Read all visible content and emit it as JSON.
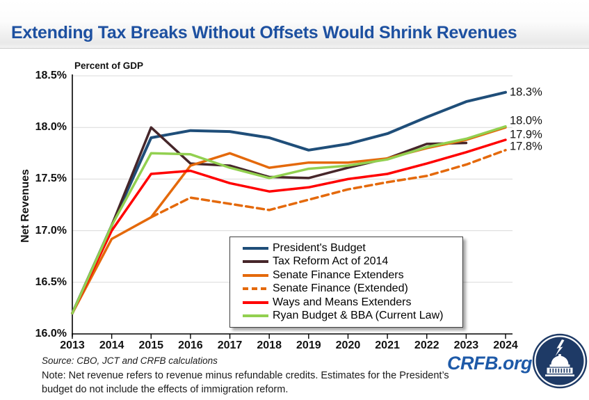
{
  "chart": {
    "units_label": "Percent of GDP"
  },
  "chart_data": {
    "type": "line",
    "title": "Extending Tax Breaks Without Offsets Would Shrink Revenues",
    "xlabel": "",
    "ylabel": "Net Revenues",
    "units": "Percent of GDP",
    "x": [
      2013,
      2014,
      2015,
      2016,
      2017,
      2018,
      2019,
      2020,
      2021,
      2022,
      2023,
      2024
    ],
    "ylim": [
      16.0,
      18.5
    ],
    "ytick_step": 0.5,
    "ytick_suffix": "%",
    "grid": true,
    "legend_position": "inside-lower-center",
    "series": [
      {
        "name": "President's Budget",
        "color": "#1F4E79",
        "dash": false,
        "width": 4,
        "values": [
          16.2,
          17.05,
          17.9,
          17.97,
          17.96,
          17.9,
          17.78,
          17.84,
          17.94,
          18.1,
          18.25,
          18.34
        ],
        "end_label": "18.3%",
        "end_label_dy": 0
      },
      {
        "name": "Tax Reform Act of 2014",
        "color": "#46262A",
        "dash": false,
        "width": 3.5,
        "values": [
          16.2,
          17.05,
          18.0,
          17.65,
          17.63,
          17.52,
          17.51,
          17.61,
          17.7,
          17.84,
          17.85,
          null
        ],
        "end_label": "",
        "end_label_dy": 0
      },
      {
        "name": "Senate Finance Extenders",
        "color": "#E4690B",
        "dash": false,
        "width": 3.5,
        "values": [
          16.2,
          16.92,
          17.13,
          17.63,
          17.75,
          17.61,
          17.66,
          17.66,
          17.7,
          17.8,
          17.88,
          18.0
        ],
        "end_label": "",
        "end_label_dy": 0
      },
      {
        "name": "Senate Finance (Extended)",
        "color": "#E4690B",
        "dash": true,
        "width": 3.5,
        "values": [
          null,
          null,
          17.13,
          17.32,
          17.26,
          17.2,
          17.3,
          17.4,
          17.47,
          17.53,
          17.64,
          17.78
        ],
        "end_label": "17.8%",
        "end_label_dy": -5
      },
      {
        "name": "Ways and Means Extenders",
        "color": "#FF0000",
        "dash": false,
        "width": 3.5,
        "values": [
          16.2,
          17.0,
          17.55,
          17.58,
          17.46,
          17.38,
          17.42,
          17.5,
          17.55,
          17.65,
          17.76,
          17.88
        ],
        "end_label": "17.9%",
        "end_label_dy": -7
      },
      {
        "name": "Ryan Budget & BBA (Current Law)",
        "color": "#92D050",
        "dash": false,
        "width": 3.5,
        "values": [
          16.2,
          17.05,
          17.75,
          17.74,
          17.61,
          17.51,
          17.6,
          17.63,
          17.69,
          17.81,
          17.89,
          18.01
        ],
        "end_label": "18.0%",
        "end_label_dy": -8
      }
    ]
  },
  "footer": {
    "source": "Source: CBO, JCT and CRFB calculations",
    "note": "Note: Net revenue refers to revenue minus refundable credits. Estimates for the President’s budget do not include the effects of immigration reform.",
    "site": "CRFB.org"
  },
  "palette": {
    "title_blue": "#1D50A0",
    "crfb_blue": "#1E5AA8",
    "logo_navy": "#1E3A66",
    "gridline": "#D9D9D9",
    "axis": "#000000"
  }
}
